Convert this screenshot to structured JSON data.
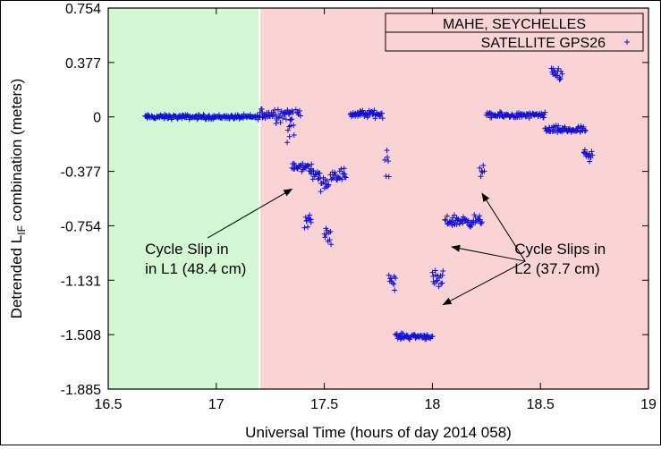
{
  "chart_data": {
    "type": "scatter",
    "xlabel": "Universal Time (hours of day 2014 058)",
    "ylabel_main": "Detrended L",
    "ylabel_sub": "IF",
    "ylabel_rest": " combination (meters)",
    "xlim": [
      16.5,
      19
    ],
    "ylim": [
      -1.885,
      0.754
    ],
    "x_ticks": [
      16.5,
      17,
      17.5,
      18,
      18.5,
      19
    ],
    "x_tick_labels": [
      "16.5",
      "17",
      "17.5",
      "18",
      "18.5",
      "19"
    ],
    "y_ticks": [
      0.754,
      0.377,
      0,
      -0.377,
      -0.754,
      -1.131,
      -1.508,
      -1.885
    ],
    "y_tick_labels": [
      "0.754",
      "0.377",
      "0",
      "-0.377",
      "-0.754",
      "-1.131",
      "-1.508",
      "-1.885"
    ],
    "regions": [
      {
        "x_start": 16.5,
        "x_end": 17.2,
        "color": "#d4f8d4"
      },
      {
        "x_start": 17.2,
        "x_end": 19,
        "color": "#fad4d4"
      }
    ],
    "legend": {
      "title": "MAHE, SEYCHELLES",
      "series_label": "SATELLITE GPS26",
      "placement": "top-right"
    },
    "marker_color": "#1010d8",
    "series": [
      {
        "name": "SATELLITE GPS26",
        "segments": [
          {
            "x_start": 16.67,
            "x_end": 17.2,
            "y": 0.0,
            "noise": 0.012
          },
          {
            "x_start": 17.2,
            "x_end": 17.35,
            "y": 0.02,
            "noise": 0.04
          },
          {
            "x_start": 17.33,
            "x_end": 17.36,
            "y": -0.07,
            "noise": 0.08
          },
          {
            "x_start": 17.35,
            "x_end": 17.44,
            "y": -0.35,
            "noise": 0.025
          },
          {
            "x_start": 17.37,
            "x_end": 17.39,
            "y": 0.03,
            "noise": 0.03
          },
          {
            "x_start": 17.41,
            "x_end": 17.44,
            "y": -0.72,
            "noise": 0.04
          },
          {
            "x_start": 17.44,
            "x_end": 17.48,
            "y": -0.4,
            "noise": 0.03
          },
          {
            "x_start": 17.48,
            "x_end": 17.52,
            "y": -0.45,
            "noise": 0.04
          },
          {
            "x_start": 17.5,
            "x_end": 17.53,
            "y": -0.82,
            "noise": 0.04
          },
          {
            "x_start": 17.53,
            "x_end": 17.6,
            "y": -0.4,
            "noise": 0.035
          },
          {
            "x_start": 17.62,
            "x_end": 17.77,
            "y": 0.02,
            "noise": 0.02
          },
          {
            "x_start": 17.78,
            "x_end": 17.8,
            "y": -0.3,
            "noise": 0.08
          },
          {
            "x_start": 17.8,
            "x_end": 17.83,
            "y": -1.13,
            "noise": 0.05
          },
          {
            "x_start": 17.83,
            "x_end": 18.0,
            "y": -1.52,
            "noise": 0.015
          },
          {
            "x_start": 18.0,
            "x_end": 18.05,
            "y": -1.14,
            "noise": 0.05
          },
          {
            "x_start": 18.06,
            "x_end": 18.23,
            "y": -0.72,
            "noise": 0.03
          },
          {
            "x_start": 18.22,
            "x_end": 18.24,
            "y": -0.37,
            "noise": 0.03
          },
          {
            "x_start": 18.25,
            "x_end": 18.52,
            "y": 0.01,
            "noise": 0.015
          },
          {
            "x_start": 18.55,
            "x_end": 18.6,
            "y": 0.3,
            "noise": 0.04
          },
          {
            "x_start": 18.52,
            "x_end": 18.71,
            "y": -0.09,
            "noise": 0.02
          },
          {
            "x_start": 18.7,
            "x_end": 18.74,
            "y": -0.28,
            "noise": 0.04
          }
        ]
      }
    ],
    "annotations": [
      {
        "lines": [
          "Cycle Slip in",
          "in L1 (48.4 cm)"
        ],
        "text_x": 16.67,
        "text_y": -0.95,
        "arrows": [
          {
            "x": 17.35,
            "y": -0.5
          }
        ]
      },
      {
        "lines": [
          "Cycle Slips in",
          "L2 (37.7 cm)"
        ],
        "text_x": 18.38,
        "text_y": -0.95,
        "arrows": [
          {
            "x": 18.23,
            "y": -0.53
          },
          {
            "x": 18.09,
            "y": -0.9
          },
          {
            "x": 18.05,
            "y": -1.3
          }
        ]
      }
    ]
  }
}
